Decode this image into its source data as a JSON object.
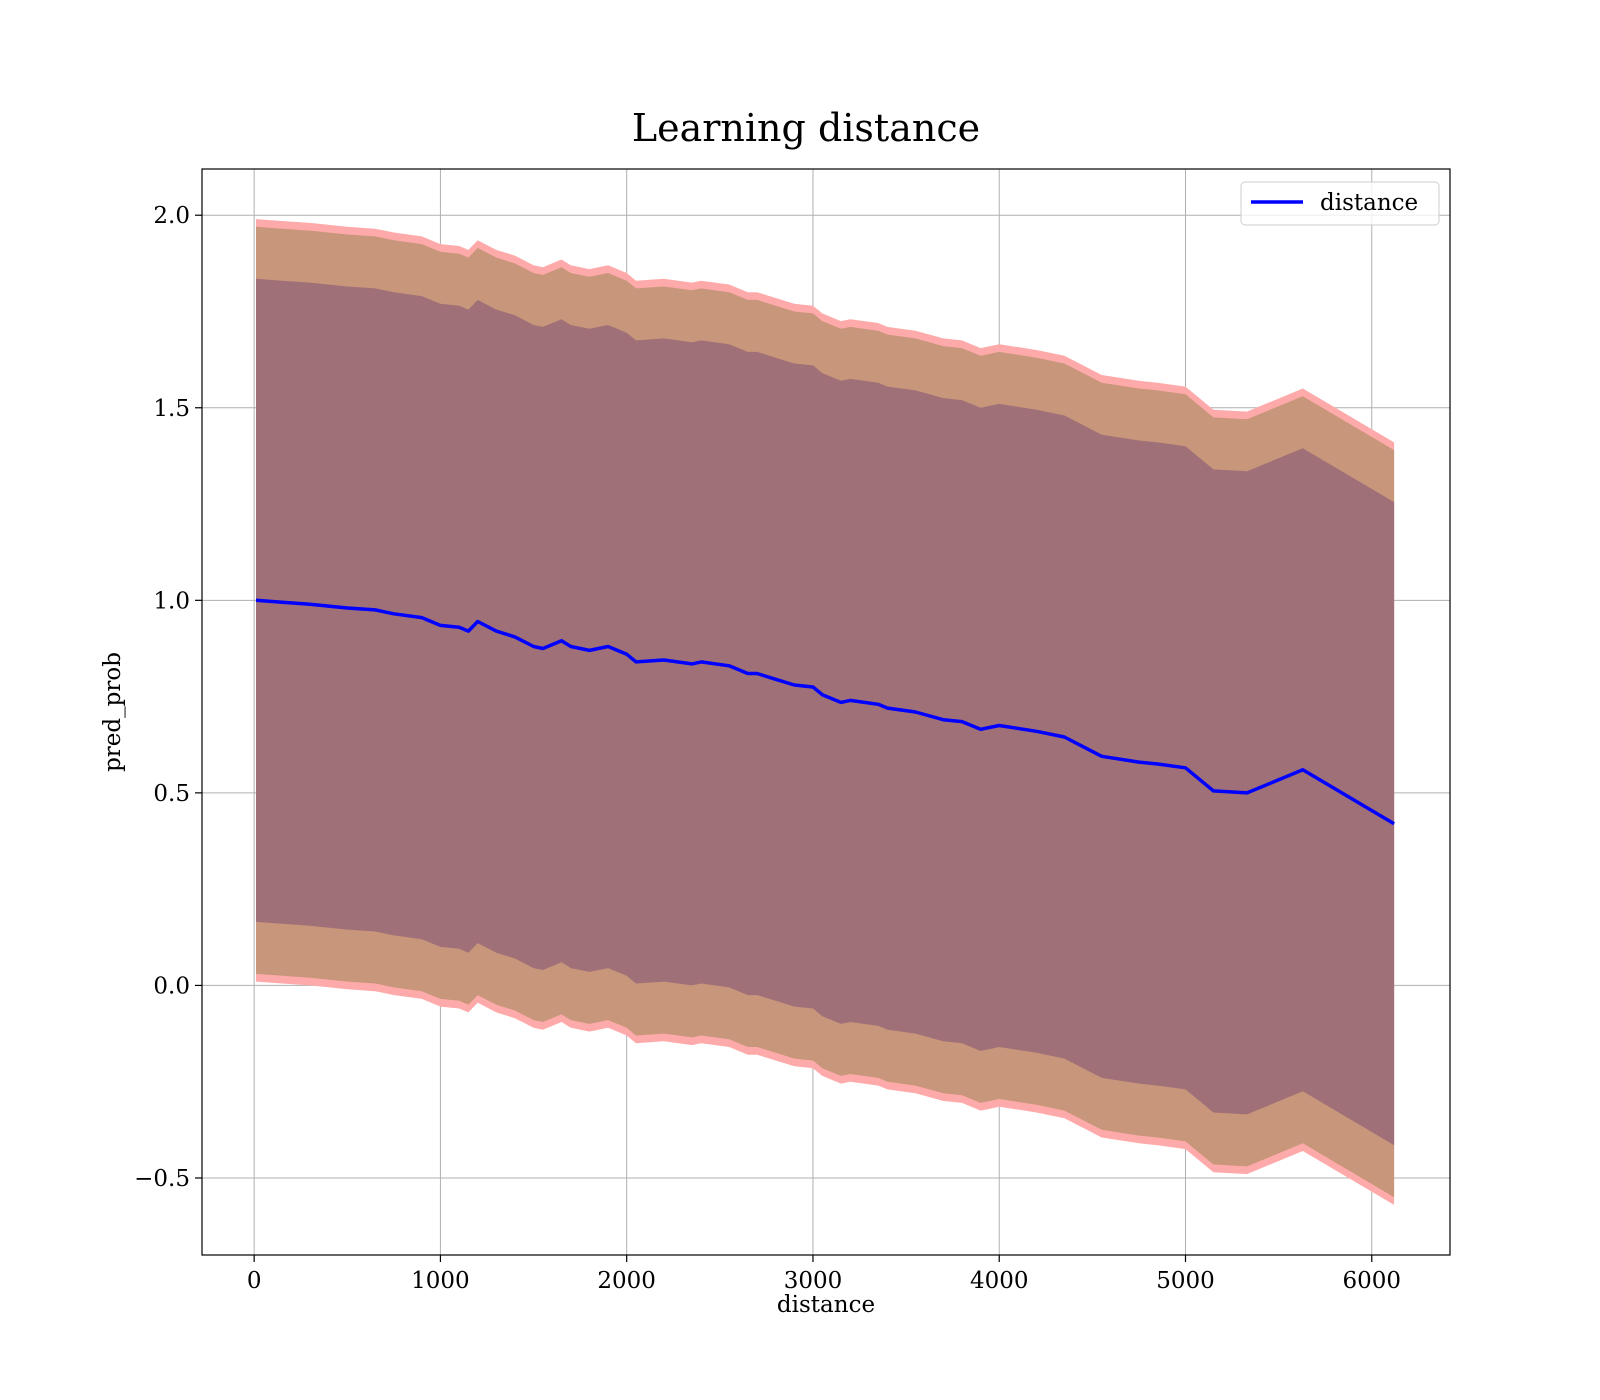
{
  "chart_data": {
    "type": "line",
    "title": "Learning distance",
    "xlabel": "distance",
    "ylabel": "pred_prob",
    "xlim": [
      -280,
      6420
    ],
    "ylim": [
      -0.7,
      2.12
    ],
    "xticks": [
      0,
      1000,
      2000,
      3000,
      4000,
      5000,
      6000
    ],
    "xtick_labels": [
      "0",
      "1000",
      "2000",
      "3000",
      "4000",
      "5000",
      "6000"
    ],
    "yticks": [
      -0.5,
      0.0,
      0.5,
      1.0,
      1.5,
      2.0
    ],
    "ytick_labels": [
      "−0.5",
      "0.0",
      "0.5",
      "1.0",
      "1.5",
      "2.0"
    ],
    "grid": true,
    "legend": {
      "position": "top-right",
      "entries": [
        "distance"
      ]
    },
    "colors": {
      "line": "#0000ff",
      "band_outer": "#ffaaaa",
      "band_mid": "#c8967a",
      "band_inner": "#a07078"
    },
    "series": [
      {
        "name": "distance",
        "x": [
          10,
          150,
          300,
          500,
          650,
          750,
          900,
          1000,
          1100,
          1150,
          1200,
          1300,
          1400,
          1500,
          1550,
          1650,
          1700,
          1800,
          1900,
          2000,
          2050,
          2200,
          2350,
          2400,
          2550,
          2650,
          2700,
          2800,
          2900,
          3000,
          3050,
          3150,
          3200,
          3350,
          3400,
          3550,
          3700,
          3800,
          3900,
          3950,
          4000,
          4200,
          4350,
          4450,
          4550,
          4750,
          4850,
          5000,
          5150,
          5330,
          5630,
          6120
        ],
        "y": [
          1.0,
          0.995,
          0.99,
          0.98,
          0.975,
          0.965,
          0.955,
          0.935,
          0.93,
          0.92,
          0.945,
          0.92,
          0.905,
          0.88,
          0.875,
          0.895,
          0.88,
          0.87,
          0.88,
          0.86,
          0.84,
          0.845,
          0.835,
          0.84,
          0.83,
          0.81,
          0.81,
          0.795,
          0.78,
          0.775,
          0.755,
          0.735,
          0.74,
          0.73,
          0.72,
          0.71,
          0.69,
          0.685,
          0.665,
          0.67,
          0.675,
          0.66,
          0.645,
          0.62,
          0.595,
          0.58,
          0.575,
          0.565,
          0.505,
          0.5,
          0.56,
          0.42
        ]
      }
    ],
    "bands": {
      "outer_halfwidth": 0.99,
      "mid_halfwidth": 0.97,
      "inner_halfwidth": 0.835
    }
  }
}
